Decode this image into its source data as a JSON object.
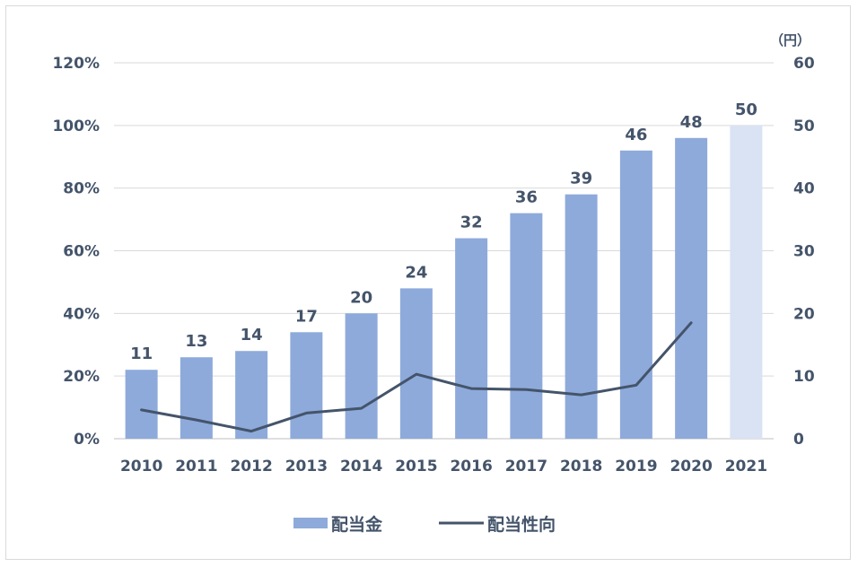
{
  "chart_data": {
    "type": "bar",
    "categories": [
      "2010",
      "2011",
      "2012",
      "2013",
      "2014",
      "2015",
      "2016",
      "2017",
      "2018",
      "2019",
      "2020",
      "2021"
    ],
    "series": [
      {
        "name": "配当金",
        "kind": "bar",
        "axis": "right",
        "values": [
          11,
          13,
          14,
          17,
          20,
          24,
          32,
          36,
          39,
          46,
          48,
          50
        ],
        "data_labels": [
          "11",
          "13",
          "14",
          "17",
          "20",
          "24",
          "32",
          "36",
          "39",
          "46",
          "48",
          "50"
        ],
        "color": "#8eaadb",
        "highlight_color": "#dae3f3",
        "highlight_index": 11
      },
      {
        "name": "配当性向",
        "kind": "line",
        "axis": "left",
        "values": [
          9.2,
          6.0,
          2.4,
          8.2,
          9.7,
          20.6,
          16.0,
          15.7,
          14.0,
          17.1,
          37.0,
          null
        ],
        "color": "#44546a"
      }
    ],
    "left_axis": {
      "ylim": [
        0,
        120
      ],
      "ticks": [
        0,
        20,
        40,
        60,
        80,
        100,
        120
      ],
      "tick_labels": [
        "0%",
        "20%",
        "40%",
        "60%",
        "80%",
        "100%",
        "120%"
      ]
    },
    "right_axis": {
      "ylim": [
        0,
        60
      ],
      "ticks": [
        0,
        10,
        20,
        30,
        40,
        50,
        60
      ],
      "tick_labels": [
        "0",
        "10",
        "20",
        "30",
        "40",
        "50",
        "60"
      ],
      "unit_label": "（円）"
    },
    "grid": true,
    "legend": "bottom"
  }
}
